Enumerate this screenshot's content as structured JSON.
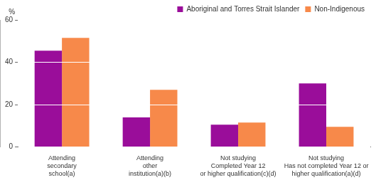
{
  "chart_data": {
    "type": "bar",
    "ylabel": "%",
    "categories": [
      "Attending\nsecondary\nschool(a)",
      "Attending\nother\ninstitution(a)(b)",
      "Not studying\nCompleted Year 12\nor higher qualification(c)(d)",
      "Not studying\nHas not completed Year 12 or\nhigher qualification(a)(d)"
    ],
    "series": [
      {
        "name": "Aboriginal and Torres Strait Islander",
        "color": "#9a0d9a",
        "values": [
          45.5,
          14,
          10.5,
          30
        ]
      },
      {
        "name": "Non-Indigenous",
        "color": "#f7894a",
        "values": [
          51.5,
          27,
          11.5,
          9.5
        ]
      }
    ],
    "ylim": [
      0,
      60
    ],
    "yticks": [
      0,
      20,
      40,
      60
    ],
    "grid": true,
    "legend": "top-right"
  }
}
